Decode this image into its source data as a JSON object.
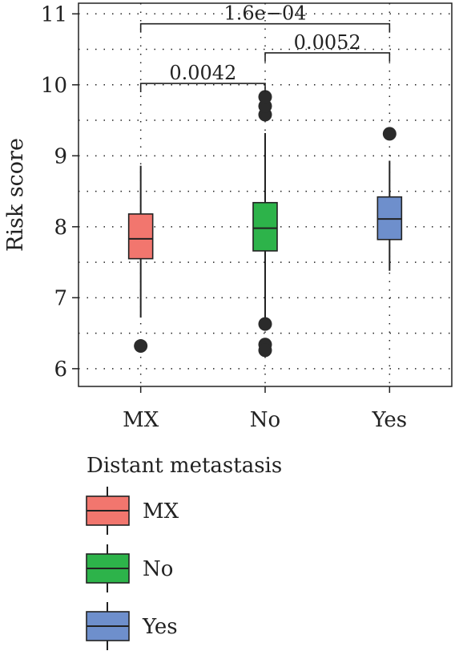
{
  "chart_data": {
    "type": "boxplot",
    "xlabel": "",
    "ylabel": "Risk score",
    "ylim": [
      5.75,
      11.15
    ],
    "yticks": [
      6,
      7,
      8,
      9,
      10,
      11
    ],
    "grid": true,
    "categories": [
      "MX",
      "No",
      "Yes"
    ],
    "boxes": [
      {
        "category": "MX",
        "color": "#F2766E",
        "whisker_low": 6.72,
        "q1": 7.55,
        "median": 7.83,
        "q3": 8.18,
        "whisker_high": 8.86,
        "outliers": [
          6.32
        ]
      },
      {
        "category": "No",
        "color": "#2DB34A",
        "whisker_low": 6.72,
        "q1": 7.66,
        "median": 7.98,
        "q3": 8.34,
        "whisker_high": 9.32,
        "outliers": [
          6.63,
          6.34,
          6.26,
          9.58,
          9.7,
          9.83
        ]
      },
      {
        "category": "Yes",
        "color": "#6E8FCC",
        "whisker_low": 7.38,
        "q1": 7.82,
        "median": 8.11,
        "q3": 8.42,
        "whisker_high": 8.93,
        "outliers": [
          9.31
        ]
      }
    ],
    "comparisons": [
      {
        "from": "MX",
        "to": "No",
        "y": 10.02,
        "label": "0.0042"
      },
      {
        "from": "No",
        "to": "Yes",
        "y": 10.45,
        "label": "0.0052"
      },
      {
        "from": "MX",
        "to": "Yes",
        "y": 10.86,
        "label": "1.6e−04"
      }
    ],
    "legend": {
      "title": "Distant metastasis",
      "position": "bottom",
      "items": [
        {
          "label": "MX",
          "color": "#F2766E"
        },
        {
          "label": "No",
          "color": "#2DB34A"
        },
        {
          "label": "Yes",
          "color": "#6E8FCC"
        }
      ]
    }
  }
}
